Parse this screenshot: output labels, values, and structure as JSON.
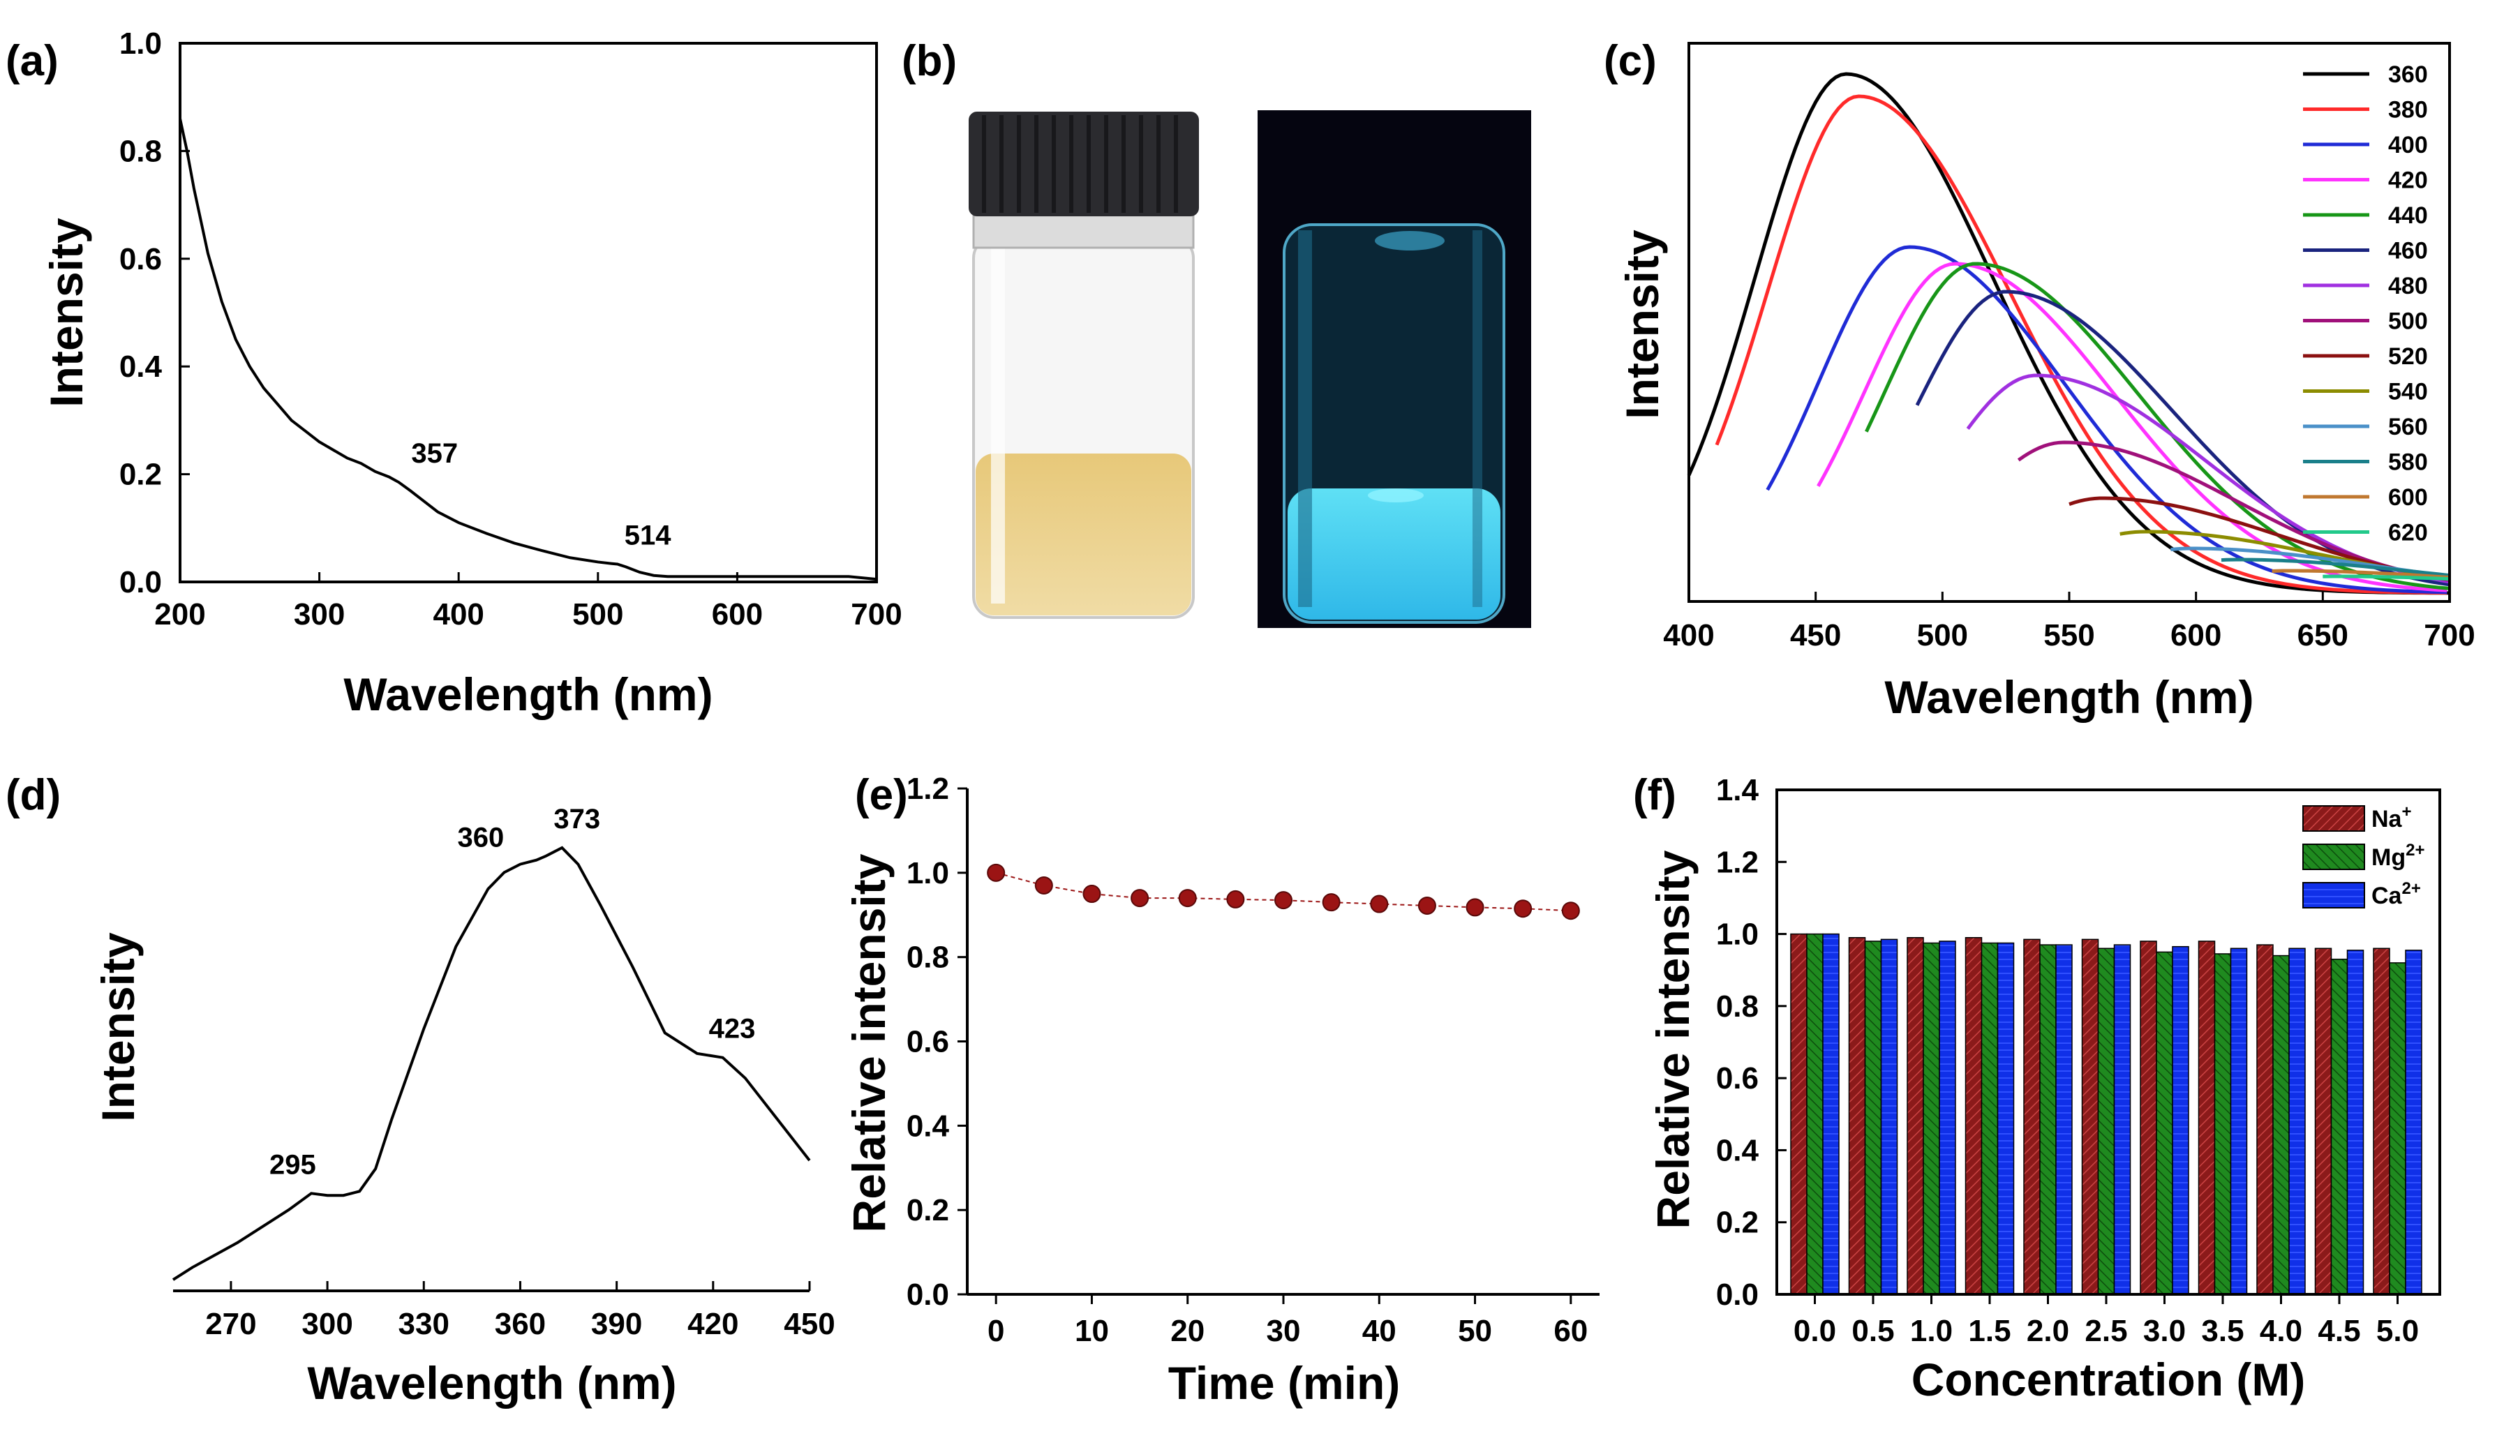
{
  "colors": {
    "c_series": [
      "#000000",
      "#ff2a2a",
      "#1f2bd6",
      "#ff33ff",
      "#179617",
      "#1a237e",
      "#a030e0",
      "#a0107a",
      "#8b1010",
      "#8c8c00",
      "#4a90c8",
      "#1a7f8a",
      "#c07830",
      "#22c98a"
    ],
    "f_series": [
      "#8b1a1a",
      "#1f8a1f",
      "#1030e8"
    ],
    "e_marker": "#9b1414"
  },
  "charts": [
    {
      "id": "a",
      "panel_label": "(a)",
      "type": "line",
      "xlabel": "Wavelength (nm)",
      "ylabel": "Intensity",
      "xlim": [
        200,
        700
      ],
      "ylim": [
        0,
        1.0
      ],
      "xticks": [
        "200",
        "300",
        "400",
        "500",
        "600",
        "700"
      ],
      "yticks": [
        "0.0",
        "0.2",
        "0.4",
        "0.6",
        "0.8",
        "1.0"
      ],
      "x": [
        200,
        205,
        210,
        215,
        220,
        230,
        240,
        250,
        260,
        270,
        280,
        290,
        300,
        310,
        320,
        330,
        340,
        350,
        357,
        365,
        375,
        385,
        400,
        420,
        440,
        460,
        480,
        500,
        510,
        514,
        520,
        530,
        540,
        550,
        560,
        580,
        600,
        620,
        640,
        660,
        680,
        700
      ],
      "y": [
        0.86,
        0.8,
        0.73,
        0.67,
        0.61,
        0.52,
        0.45,
        0.4,
        0.36,
        0.33,
        0.3,
        0.28,
        0.26,
        0.245,
        0.23,
        0.22,
        0.205,
        0.195,
        0.185,
        0.17,
        0.15,
        0.13,
        0.11,
        0.09,
        0.072,
        0.058,
        0.045,
        0.037,
        0.034,
        0.033,
        0.028,
        0.018,
        0.012,
        0.01,
        0.01,
        0.01,
        0.01,
        0.01,
        0.01,
        0.01,
        0.01,
        0.005
      ],
      "annotations": [
        {
          "text": "357",
          "x": 357,
          "y": 0.185
        },
        {
          "text": "514",
          "x": 514,
          "y": 0.033
        }
      ]
    },
    {
      "id": "b",
      "panel_label": "(b)",
      "type": "photo",
      "description_hidden": true
    },
    {
      "id": "c",
      "panel_label": "(c)",
      "type": "line",
      "xlabel": "Wavelength (nm)",
      "ylabel": "Intensity",
      "xlim": [
        400,
        700
      ],
      "ylim": [
        0,
        1.0
      ],
      "xticks": [
        "400",
        "450",
        "500",
        "550",
        "600",
        "650",
        "700"
      ],
      "legend": [
        "360",
        "380",
        "400",
        "420",
        "440",
        "460",
        "480",
        "500",
        "520",
        "540",
        "560",
        "580",
        "600",
        "620"
      ],
      "series": [
        {
          "name": "360",
          "start": 400,
          "peak": 462,
          "amp": 0.93
        },
        {
          "name": "380",
          "start": 411,
          "peak": 467,
          "amp": 0.89
        },
        {
          "name": "400",
          "start": 431,
          "peak": 487,
          "amp": 0.62
        },
        {
          "name": "420",
          "start": 451,
          "peak": 505,
          "amp": 0.59
        },
        {
          "name": "440",
          "start": 470,
          "peak": 513,
          "amp": 0.59
        },
        {
          "name": "460",
          "start": 490,
          "peak": 525,
          "amp": 0.54
        },
        {
          "name": "480",
          "start": 510,
          "peak": 537,
          "amp": 0.39
        },
        {
          "name": "500",
          "start": 530,
          "peak": 548,
          "amp": 0.27
        },
        {
          "name": "520",
          "start": 550,
          "peak": 563,
          "amp": 0.17
        },
        {
          "name": "540",
          "start": 570,
          "peak": 580,
          "amp": 0.11
        },
        {
          "name": "560",
          "start": 590,
          "peak": 598,
          "amp": 0.08
        },
        {
          "name": "580",
          "start": 610,
          "peak": 616,
          "amp": 0.06
        },
        {
          "name": "600",
          "start": 630,
          "peak": 636,
          "amp": 0.04
        },
        {
          "name": "620",
          "start": 650,
          "peak": 655,
          "amp": 0.03
        }
      ]
    },
    {
      "id": "d",
      "panel_label": "(d)",
      "type": "line",
      "xlabel": "Wavelength (nm)",
      "ylabel": "Intensity",
      "xlim": [
        252,
        450
      ],
      "ylim": [
        0,
        1.0
      ],
      "xticks": [
        "270",
        "300",
        "330",
        "360",
        "390",
        "420",
        "450"
      ],
      "x": [
        252,
        258,
        265,
        272,
        280,
        288,
        295,
        300,
        305,
        310,
        315,
        320,
        330,
        340,
        350,
        355,
        360,
        365,
        368,
        373,
        378,
        385,
        395,
        405,
        415,
        423,
        430,
        440,
        450
      ],
      "y": [
        0.01,
        0.04,
        0.07,
        0.1,
        0.14,
        0.18,
        0.22,
        0.215,
        0.215,
        0.225,
        0.28,
        0.4,
        0.62,
        0.82,
        0.96,
        1.0,
        1.02,
        1.03,
        1.04,
        1.06,
        1.02,
        0.92,
        0.77,
        0.61,
        0.56,
        0.55,
        0.5,
        0.4,
        0.3
      ],
      "annotations": [
        {
          "text": "295",
          "x": 295,
          "y": 0.22
        },
        {
          "text": "360",
          "x": 360,
          "y": 1.02
        },
        {
          "text": "373",
          "x": 373,
          "y": 1.06
        },
        {
          "text": "423",
          "x": 423,
          "y": 0.55
        }
      ]
    },
    {
      "id": "e",
      "panel_label": "(e)",
      "type": "scatter",
      "xlabel": "Time (min)",
      "ylabel": "Relative intensity",
      "xlim": [
        -3,
        63
      ],
      "ylim": [
        0,
        1.2
      ],
      "xticks": [
        "0",
        "10",
        "20",
        "30",
        "40",
        "50",
        "60"
      ],
      "yticks": [
        "0.0",
        "0.2",
        "0.4",
        "0.6",
        "0.8",
        "1.0",
        "1.2"
      ],
      "x": [
        0,
        5,
        10,
        15,
        20,
        25,
        30,
        35,
        40,
        45,
        50,
        55,
        60
      ],
      "y": [
        1.0,
        0.97,
        0.95,
        0.94,
        0.94,
        0.937,
        0.935,
        0.93,
        0.926,
        0.922,
        0.918,
        0.915,
        0.91
      ]
    },
    {
      "id": "f",
      "panel_label": "(f)",
      "type": "bar",
      "xlabel": "Concentration (M)",
      "ylabel": "Relative intensity",
      "ylim": [
        0,
        1.4
      ],
      "categories": [
        "0.0",
        "0.5",
        "1.0",
        "1.5",
        "2.0",
        "2.5",
        "3.0",
        "3.5",
        "4.0",
        "4.5",
        "5.0"
      ],
      "yticks": [
        "0.0",
        "0.2",
        "0.4",
        "0.6",
        "0.8",
        "1.0",
        "1.2",
        "1.4"
      ],
      "series": [
        {
          "name": "Na",
          "sup": "+",
          "values": [
            1.0,
            0.99,
            0.99,
            0.99,
            0.985,
            0.985,
            0.98,
            0.98,
            0.97,
            0.96,
            0.96
          ]
        },
        {
          "name": "Mg",
          "sup": "2+",
          "values": [
            1.0,
            0.98,
            0.975,
            0.975,
            0.97,
            0.96,
            0.95,
            0.945,
            0.94,
            0.93,
            0.92
          ]
        },
        {
          "name": "Ca",
          "sup": "2+",
          "values": [
            1.0,
            0.985,
            0.98,
            0.975,
            0.97,
            0.97,
            0.965,
            0.96,
            0.96,
            0.955,
            0.955
          ]
        }
      ]
    }
  ]
}
